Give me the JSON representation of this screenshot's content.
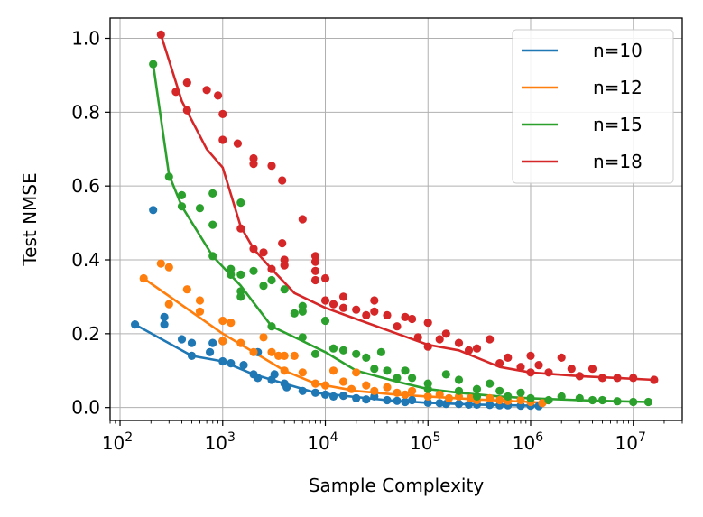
{
  "chart_data": {
    "type": "scatter",
    "xlabel": "Sample Complexity",
    "ylabel": "Test NMSE",
    "xscale": "log",
    "xlim": [
      80,
      30000000
    ],
    "ylim": [
      -0.035,
      1.055
    ],
    "x_ticks": [
      {
        "value": 100,
        "base": "10",
        "exp": "2"
      },
      {
        "value": 1000,
        "base": "10",
        "exp": "3"
      },
      {
        "value": 10000,
        "base": "10",
        "exp": "4"
      },
      {
        "value": 100000,
        "base": "10",
        "exp": "5"
      },
      {
        "value": 1000000,
        "base": "10",
        "exp": "6"
      },
      {
        "value": 10000000,
        "base": "10",
        "exp": "7"
      }
    ],
    "y_ticks": [
      {
        "value": 0.0,
        "label": "0.0"
      },
      {
        "value": 0.2,
        "label": "0.2"
      },
      {
        "value": 0.4,
        "label": "0.4"
      },
      {
        "value": 0.6,
        "label": "0.6"
      },
      {
        "value": 0.8,
        "label": "0.8"
      },
      {
        "value": 1.0,
        "label": "1.0"
      }
    ],
    "grid": true,
    "legend_position": "top-right",
    "series": [
      {
        "name": "n=10",
        "color": "#1f77b4",
        "line": [
          [
            140,
            0.225
          ],
          [
            500,
            0.14
          ],
          [
            1000,
            0.125
          ],
          [
            2000,
            0.09
          ],
          [
            4000,
            0.065
          ],
          [
            8000,
            0.04
          ],
          [
            15000,
            0.032
          ],
          [
            40000,
            0.02
          ],
          [
            100000,
            0.013
          ],
          [
            300000,
            0.008
          ],
          [
            1000000,
            0.005
          ],
          [
            1300000,
            0.004
          ]
        ],
        "points": [
          [
            140,
            0.225
          ],
          [
            210,
            0.535
          ],
          [
            270,
            0.245
          ],
          [
            270,
            0.225
          ],
          [
            400,
            0.185
          ],
          [
            500,
            0.14
          ],
          [
            500,
            0.175
          ],
          [
            750,
            0.15
          ],
          [
            800,
            0.175
          ],
          [
            1000,
            0.125
          ],
          [
            1000,
            0.18
          ],
          [
            1200,
            0.12
          ],
          [
            1600,
            0.115
          ],
          [
            2000,
            0.09
          ],
          [
            2200,
            0.08
          ],
          [
            2200,
            0.15
          ],
          [
            3000,
            0.075
          ],
          [
            3200,
            0.09
          ],
          [
            4000,
            0.065
          ],
          [
            4200,
            0.055
          ],
          [
            6000,
            0.045
          ],
          [
            8000,
            0.04
          ],
          [
            10000,
            0.035
          ],
          [
            12000,
            0.03
          ],
          [
            15000,
            0.032
          ],
          [
            20000,
            0.025
          ],
          [
            25000,
            0.022
          ],
          [
            30000,
            0.03
          ],
          [
            40000,
            0.02
          ],
          [
            50000,
            0.018
          ],
          [
            60000,
            0.015
          ],
          [
            70000,
            0.02
          ],
          [
            100000,
            0.013
          ],
          [
            130000,
            0.012
          ],
          [
            150000,
            0.01
          ],
          [
            200000,
            0.01
          ],
          [
            250000,
            0.008
          ],
          [
            300000,
            0.008
          ],
          [
            400000,
            0.007
          ],
          [
            500000,
            0.006
          ],
          [
            600000,
            0.006
          ],
          [
            800000,
            0.005
          ],
          [
            1000000,
            0.005
          ],
          [
            1200000,
            0.004
          ]
        ]
      },
      {
        "name": "n=12",
        "color": "#ff7f0e",
        "line": [
          [
            170,
            0.35
          ],
          [
            1000,
            0.2
          ],
          [
            2000,
            0.15
          ],
          [
            4000,
            0.1
          ],
          [
            8000,
            0.065
          ],
          [
            20000,
            0.045
          ],
          [
            50000,
            0.035
          ],
          [
            100000,
            0.03
          ],
          [
            300000,
            0.022
          ],
          [
            1000000,
            0.015
          ],
          [
            1500000,
            0.012
          ]
        ],
        "points": [
          [
            170,
            0.35
          ],
          [
            250,
            0.39
          ],
          [
            300,
            0.38
          ],
          [
            300,
            0.28
          ],
          [
            450,
            0.32
          ],
          [
            600,
            0.29
          ],
          [
            600,
            0.26
          ],
          [
            1000,
            0.235
          ],
          [
            1000,
            0.18
          ],
          [
            1200,
            0.23
          ],
          [
            1500,
            0.175
          ],
          [
            2000,
            0.15
          ],
          [
            2500,
            0.19
          ],
          [
            3000,
            0.15
          ],
          [
            3500,
            0.14
          ],
          [
            4000,
            0.14
          ],
          [
            4000,
            0.1
          ],
          [
            5000,
            0.14
          ],
          [
            6000,
            0.095
          ],
          [
            8000,
            0.065
          ],
          [
            10000,
            0.06
          ],
          [
            12000,
            0.1
          ],
          [
            15000,
            0.07
          ],
          [
            18000,
            0.05
          ],
          [
            20000,
            0.095
          ],
          [
            25000,
            0.06
          ],
          [
            30000,
            0.045
          ],
          [
            40000,
            0.055
          ],
          [
            50000,
            0.04
          ],
          [
            60000,
            0.035
          ],
          [
            70000,
            0.045
          ],
          [
            100000,
            0.03
          ],
          [
            130000,
            0.035
          ],
          [
            160000,
            0.025
          ],
          [
            200000,
            0.03
          ],
          [
            260000,
            0.025
          ],
          [
            300000,
            0.02
          ],
          [
            400000,
            0.025
          ],
          [
            500000,
            0.02
          ],
          [
            600000,
            0.018
          ],
          [
            800000,
            0.02
          ],
          [
            1000000,
            0.015
          ],
          [
            1300000,
            0.012
          ]
        ]
      },
      {
        "name": "n=15",
        "color": "#2ca02c",
        "line": [
          [
            210,
            0.93
          ],
          [
            300,
            0.63
          ],
          [
            400,
            0.545
          ],
          [
            800,
            0.41
          ],
          [
            1500,
            0.33
          ],
          [
            3000,
            0.22
          ],
          [
            6000,
            0.18
          ],
          [
            10000,
            0.15
          ],
          [
            20000,
            0.1
          ],
          [
            50000,
            0.07
          ],
          [
            100000,
            0.05
          ],
          [
            200000,
            0.04
          ],
          [
            500000,
            0.03
          ],
          [
            1000000,
            0.025
          ],
          [
            3000000,
            0.02
          ],
          [
            7000000,
            0.017
          ],
          [
            14000000,
            0.015
          ]
        ],
        "points": [
          [
            210,
            0.93
          ],
          [
            300,
            0.625
          ],
          [
            400,
            0.575
          ],
          [
            400,
            0.545
          ],
          [
            600,
            0.54
          ],
          [
            800,
            0.58
          ],
          [
            800,
            0.495
          ],
          [
            800,
            0.41
          ],
          [
            1200,
            0.375
          ],
          [
            1200,
            0.36
          ],
          [
            1500,
            0.555
          ],
          [
            1500,
            0.36
          ],
          [
            1500,
            0.315
          ],
          [
            1500,
            0.3
          ],
          [
            2000,
            0.37
          ],
          [
            2500,
            0.33
          ],
          [
            3000,
            0.345
          ],
          [
            3000,
            0.22
          ],
          [
            4000,
            0.32
          ],
          [
            5000,
            0.255
          ],
          [
            6000,
            0.275
          ],
          [
            6000,
            0.26
          ],
          [
            6000,
            0.19
          ],
          [
            8000,
            0.145
          ],
          [
            10000,
            0.235
          ],
          [
            12000,
            0.16
          ],
          [
            15000,
            0.155
          ],
          [
            20000,
            0.145
          ],
          [
            25000,
            0.135
          ],
          [
            30000,
            0.105
          ],
          [
            35000,
            0.15
          ],
          [
            40000,
            0.1
          ],
          [
            50000,
            0.08
          ],
          [
            60000,
            0.1
          ],
          [
            70000,
            0.08
          ],
          [
            100000,
            0.065
          ],
          [
            100000,
            0.05
          ],
          [
            150000,
            0.09
          ],
          [
            200000,
            0.075
          ],
          [
            200000,
            0.045
          ],
          [
            300000,
            0.05
          ],
          [
            300000,
            0.03
          ],
          [
            400000,
            0.065
          ],
          [
            500000,
            0.045
          ],
          [
            600000,
            0.03
          ],
          [
            800000,
            0.04
          ],
          [
            1000000,
            0.025
          ],
          [
            1500000,
            0.02
          ],
          [
            2000000,
            0.03
          ],
          [
            3000000,
            0.025
          ],
          [
            4000000,
            0.02
          ],
          [
            5000000,
            0.02
          ],
          [
            7000000,
            0.017
          ],
          [
            10000000,
            0.015
          ],
          [
            14000000,
            0.015
          ]
        ]
      },
      {
        "name": "n=18",
        "color": "#d62728",
        "line": [
          [
            250,
            1.01
          ],
          [
            400,
            0.83
          ],
          [
            700,
            0.7
          ],
          [
            1000,
            0.65
          ],
          [
            1500,
            0.49
          ],
          [
            2000,
            0.43
          ],
          [
            3000,
            0.375
          ],
          [
            5000,
            0.31
          ],
          [
            10000,
            0.27
          ],
          [
            20000,
            0.24
          ],
          [
            50000,
            0.2
          ],
          [
            100000,
            0.17
          ],
          [
            200000,
            0.155
          ],
          [
            500000,
            0.11
          ],
          [
            1000000,
            0.095
          ],
          [
            3000000,
            0.085
          ],
          [
            7000000,
            0.08
          ],
          [
            16000000,
            0.075
          ]
        ],
        "points": [
          [
            250,
            1.01
          ],
          [
            350,
            0.855
          ],
          [
            450,
            0.88
          ],
          [
            450,
            0.805
          ],
          [
            700,
            0.86
          ],
          [
            900,
            0.845
          ],
          [
            1000,
            0.795
          ],
          [
            1000,
            0.725
          ],
          [
            1400,
            0.715
          ],
          [
            1500,
            0.485
          ],
          [
            2000,
            0.675
          ],
          [
            2000,
            0.66
          ],
          [
            2000,
            0.43
          ],
          [
            2500,
            0.42
          ],
          [
            3000,
            0.655
          ],
          [
            3000,
            0.375
          ],
          [
            3800,
            0.615
          ],
          [
            3800,
            0.445
          ],
          [
            4000,
            0.4
          ],
          [
            4000,
            0.385
          ],
          [
            6000,
            0.51
          ],
          [
            8000,
            0.41
          ],
          [
            8000,
            0.395
          ],
          [
            8000,
            0.37
          ],
          [
            8000,
            0.345
          ],
          [
            10000,
            0.35
          ],
          [
            10000,
            0.29
          ],
          [
            12000,
            0.28
          ],
          [
            15000,
            0.3
          ],
          [
            15000,
            0.27
          ],
          [
            20000,
            0.265
          ],
          [
            25000,
            0.25
          ],
          [
            30000,
            0.29
          ],
          [
            30000,
            0.26
          ],
          [
            40000,
            0.25
          ],
          [
            50000,
            0.22
          ],
          [
            60000,
            0.245
          ],
          [
            70000,
            0.24
          ],
          [
            80000,
            0.19
          ],
          [
            100000,
            0.23
          ],
          [
            100000,
            0.165
          ],
          [
            130000,
            0.185
          ],
          [
            150000,
            0.2
          ],
          [
            200000,
            0.175
          ],
          [
            250000,
            0.155
          ],
          [
            300000,
            0.16
          ],
          [
            400000,
            0.185
          ],
          [
            500000,
            0.12
          ],
          [
            600000,
            0.135
          ],
          [
            800000,
            0.11
          ],
          [
            1000000,
            0.14
          ],
          [
            1000000,
            0.095
          ],
          [
            1200000,
            0.115
          ],
          [
            1500000,
            0.095
          ],
          [
            2000000,
            0.135
          ],
          [
            2500000,
            0.105
          ],
          [
            3000000,
            0.085
          ],
          [
            4000000,
            0.105
          ],
          [
            5000000,
            0.08
          ],
          [
            7000000,
            0.08
          ],
          [
            10000000,
            0.08
          ],
          [
            16000000,
            0.075
          ]
        ]
      }
    ]
  }
}
